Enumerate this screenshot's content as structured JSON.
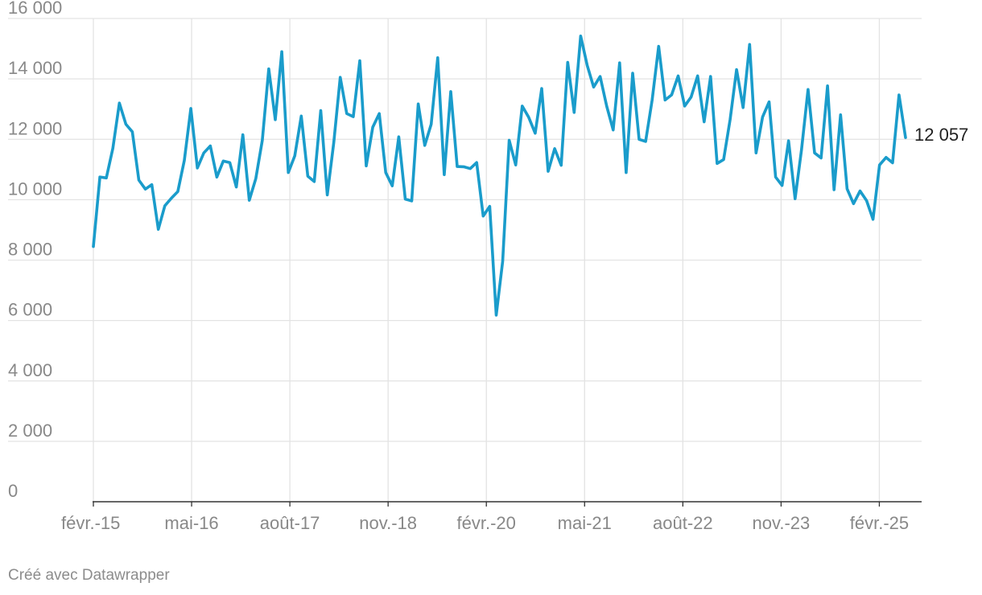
{
  "credit": "Créé avec Datawrapper",
  "colors": {
    "line": "#1a9ccb",
    "grid": "#e3e3e3",
    "axis": "#333333",
    "tick_text": "#888888"
  },
  "chart_data": {
    "type": "line",
    "title": "",
    "xlabel": "",
    "ylabel": "",
    "ylim": [
      0,
      16000
    ],
    "yticks": [
      0,
      2000,
      4000,
      6000,
      8000,
      10000,
      12000,
      14000,
      16000
    ],
    "ytick_labels": [
      "0",
      "2 000",
      "4 000",
      "6 000",
      "8 000",
      "10 000",
      "12 000",
      "14 000",
      "16 000"
    ],
    "x_start": "2015-02",
    "x_end": "2025-06",
    "xticks": [
      "2015-02",
      "2016-05",
      "2017-08",
      "2018-11",
      "2020-02",
      "2021-05",
      "2022-08",
      "2023-11",
      "2025-02"
    ],
    "xtick_labels": [
      "févr.-15",
      "mai-16",
      "août-17",
      "nov.-18",
      "févr.-20",
      "mai-21",
      "août-22",
      "nov.-23",
      "févr.-25"
    ],
    "grid": true,
    "end_label": "12 057",
    "series": [
      {
        "values": [
          8450,
          10750,
          10720,
          11700,
          13200,
          12500,
          12250,
          10650,
          10350,
          10500,
          9020,
          9800,
          10050,
          10270,
          11300,
          13020,
          11050,
          11550,
          11780,
          10750,
          11280,
          11230,
          10420,
          12150,
          9980,
          10700,
          11970,
          14330,
          12650,
          14900,
          10900,
          11450,
          12770,
          10780,
          10600,
          12950,
          10160,
          11900,
          14050,
          12850,
          12750,
          14600,
          11120,
          12400,
          12850,
          10900,
          10460,
          12080,
          10020,
          9960,
          13170,
          11800,
          12500,
          14700,
          10830,
          13580,
          11100,
          11090,
          11030,
          11230,
          9460,
          9780,
          6180,
          7960,
          11970,
          11150,
          13100,
          12730,
          12200,
          13680,
          10940,
          11690,
          11140,
          14550,
          12890,
          15420,
          14450,
          13730,
          14080,
          13100,
          12310,
          14530,
          10900,
          14190,
          12000,
          11930,
          13300,
          15080,
          13300,
          13470,
          14100,
          13100,
          13400,
          14100,
          12580,
          14080,
          11200,
          11330,
          12660,
          14310,
          13050,
          15140,
          11550,
          12740,
          13240,
          10750,
          10470,
          11950,
          10030,
          11660,
          13650,
          11550,
          11380,
          13770,
          10330,
          12810,
          10360,
          9870,
          10290,
          9970,
          9350,
          11150,
          11400,
          11220,
          13470,
          12057
        ]
      }
    ]
  }
}
